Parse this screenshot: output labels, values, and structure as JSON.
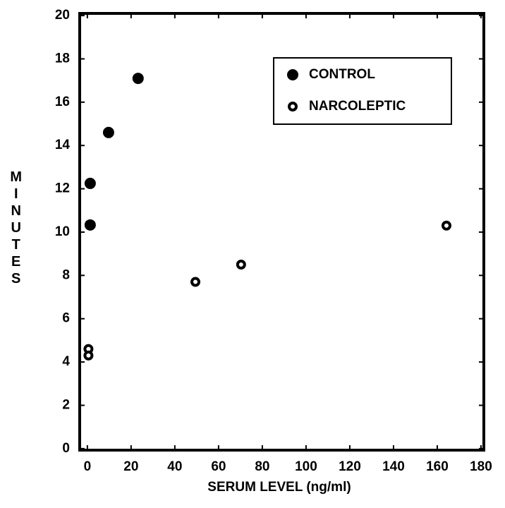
{
  "chart_data": {
    "type": "scatter",
    "x_label": "SERUM LEVEL (ng/ml)",
    "y_label": "MINUTES",
    "xlim": [
      -3.5,
      181.3
    ],
    "ylim": [
      -0.07,
      20.1
    ],
    "xticks": [
      0,
      20,
      40,
      60,
      80,
      100,
      120,
      140,
      160,
      180
    ],
    "yticks": [
      0,
      2,
      4,
      6,
      8,
      10,
      12,
      14,
      16,
      18,
      20
    ],
    "legend": "upper right",
    "series": [
      {
        "name": "CONTROL",
        "color": "#000000",
        "marker": "filled",
        "x": [
          1.3,
          1.3,
          9.7,
          23.2
        ],
        "values": [
          12.25,
          10.33,
          14.6,
          17.1
        ]
      },
      {
        "name": "NARCOLEPTIC",
        "color": "#000000",
        "marker": "hollow",
        "x": [
          0.5,
          0.5,
          49.4,
          70.3,
          164.2
        ],
        "values": [
          4.6,
          4.3,
          7.7,
          8.5,
          10.3
        ]
      }
    ]
  }
}
